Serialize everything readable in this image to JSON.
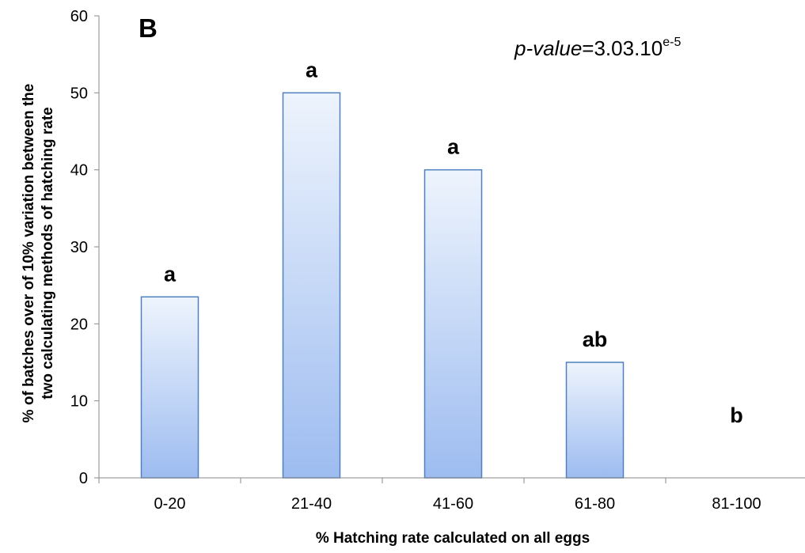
{
  "chart_data": {
    "type": "bar",
    "panel_label": "B",
    "annotation": {
      "italic": "p-value",
      "rest": "=3.03.10",
      "superscript": "e-5"
    },
    "xlabel": "% Hatching rate calculated on all eggs",
    "ylabel_lines": [
      "% of batches  over of 10% variation between the",
      "two calculating methods of  hatching rate"
    ],
    "categories": [
      "0-20",
      "21-40",
      "41-60",
      "61-80",
      "81-100"
    ],
    "values": [
      23.5,
      50,
      40,
      15,
      0
    ],
    "significance_letters": [
      "a",
      "a",
      "a",
      "ab",
      "b"
    ],
    "ylim": [
      0,
      60
    ],
    "yticks": [
      0,
      10,
      20,
      30,
      40,
      50,
      60
    ],
    "grid": false,
    "legend": "none",
    "colors": {
      "bar_top": "#eef4fd",
      "bar_bottom": "#9dbcf0",
      "bar_stroke": "#4f81bd",
      "axis": "#888888",
      "text": "#000000"
    }
  }
}
